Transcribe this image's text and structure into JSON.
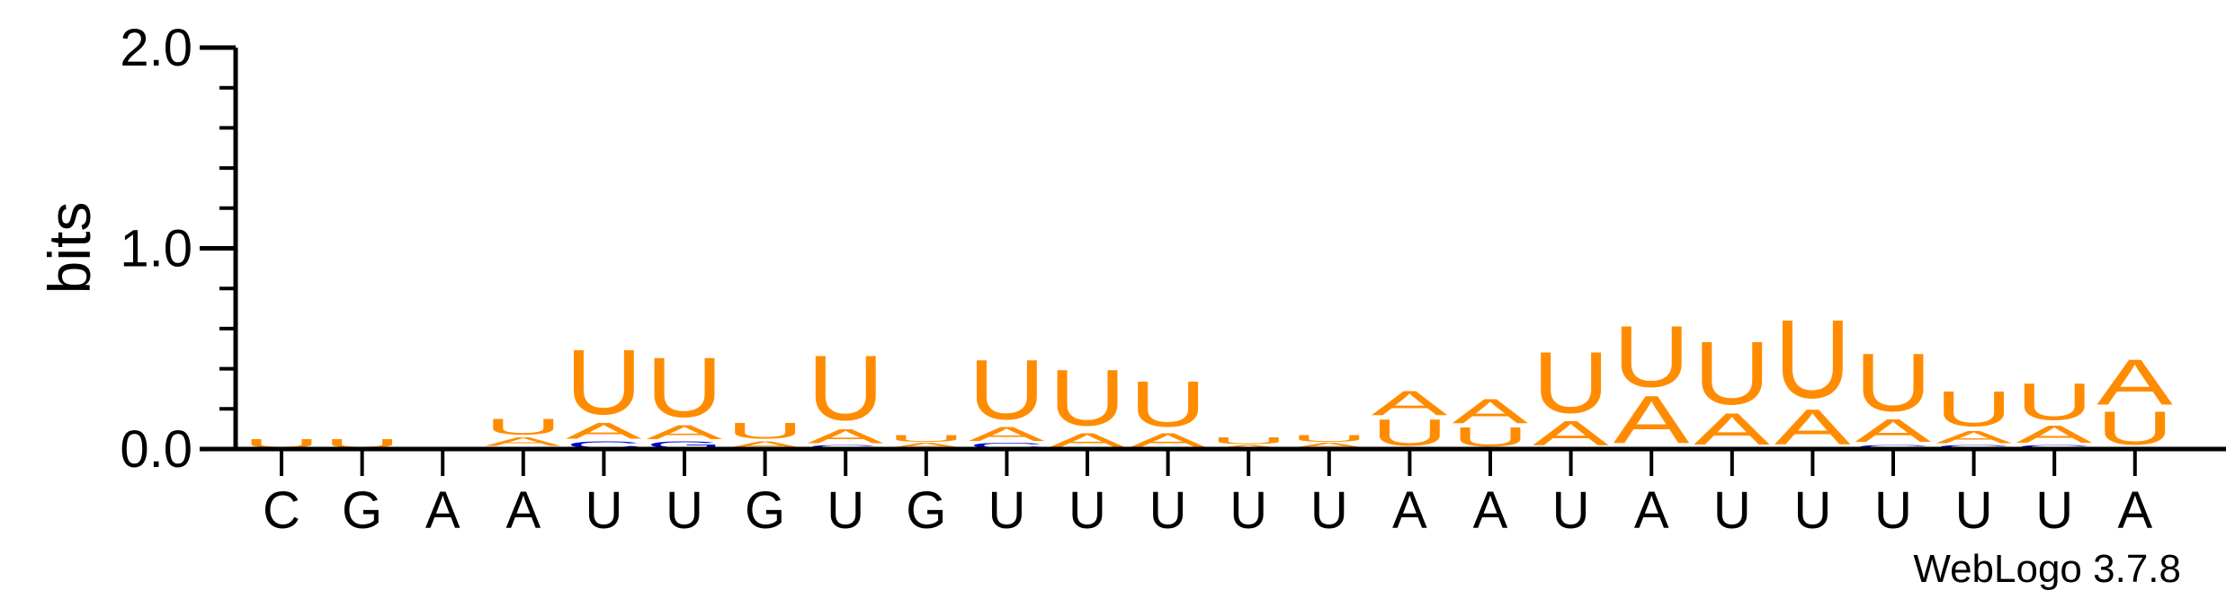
{
  "chart_data": {
    "type": "sequence-logo",
    "ylabel": "bits",
    "ylim": [
      0,
      2
    ],
    "yticks": [
      "0.0",
      "1.0",
      "2.0"
    ],
    "credit": "WebLogo 3.7.8",
    "positions": [
      {
        "label": "C",
        "stack": [
          {
            "letter": "U",
            "bits": 0.05
          }
        ]
      },
      {
        "label": "G",
        "stack": [
          {
            "letter": "U",
            "bits": 0.05
          }
        ]
      },
      {
        "label": "A",
        "stack": [
          {
            "letter": "C",
            "bits": 0.01
          }
        ]
      },
      {
        "label": "A",
        "stack": [
          {
            "letter": "G",
            "bits": 0.01
          },
          {
            "letter": "A",
            "bits": 0.05
          },
          {
            "letter": "U",
            "bits": 0.09
          }
        ]
      },
      {
        "label": "U",
        "stack": [
          {
            "letter": "C",
            "bits": 0.04
          },
          {
            "letter": "A",
            "bits": 0.09
          },
          {
            "letter": "U",
            "bits": 0.37
          }
        ]
      },
      {
        "label": "U",
        "stack": [
          {
            "letter": "G",
            "bits": 0.04
          },
          {
            "letter": "A",
            "bits": 0.08
          },
          {
            "letter": "U",
            "bits": 0.34
          }
        ]
      },
      {
        "label": "G",
        "stack": [
          {
            "letter": "A",
            "bits": 0.04
          },
          {
            "letter": "U",
            "bits": 0.09
          }
        ]
      },
      {
        "label": "U",
        "stack": [
          {
            "letter": "G",
            "bits": 0.02
          },
          {
            "letter": "A",
            "bits": 0.08
          },
          {
            "letter": "U",
            "bits": 0.37
          }
        ]
      },
      {
        "label": "G",
        "stack": [
          {
            "letter": "A",
            "bits": 0.03
          },
          {
            "letter": "U",
            "bits": 0.04
          }
        ]
      },
      {
        "label": "U",
        "stack": [
          {
            "letter": "C",
            "bits": 0.03
          },
          {
            "letter": "A",
            "bits": 0.08
          },
          {
            "letter": "U",
            "bits": 0.34
          }
        ]
      },
      {
        "label": "U",
        "stack": [
          {
            "letter": "A",
            "bits": 0.08
          },
          {
            "letter": "U",
            "bits": 0.32
          }
        ]
      },
      {
        "label": "U",
        "stack": [
          {
            "letter": "A",
            "bits": 0.08
          },
          {
            "letter": "U",
            "bits": 0.26
          }
        ]
      },
      {
        "label": "U",
        "stack": [
          {
            "letter": "A",
            "bits": 0.02
          },
          {
            "letter": "U",
            "bits": 0.04
          }
        ]
      },
      {
        "label": "U",
        "stack": [
          {
            "letter": "A",
            "bits": 0.03
          },
          {
            "letter": "U",
            "bits": 0.04
          }
        ]
      },
      {
        "label": "A",
        "stack": [
          {
            "letter": "U",
            "bits": 0.15
          },
          {
            "letter": "A",
            "bits": 0.14
          }
        ]
      },
      {
        "label": "A",
        "stack": [
          {
            "letter": "U",
            "bits": 0.11
          },
          {
            "letter": "A",
            "bits": 0.14
          }
        ]
      },
      {
        "label": "U",
        "stack": [
          {
            "letter": "A",
            "bits": 0.14
          },
          {
            "letter": "U",
            "bits": 0.35
          }
        ]
      },
      {
        "label": "A",
        "stack": [
          {
            "letter": "A",
            "bits": 0.27
          },
          {
            "letter": "U",
            "bits": 0.35
          }
        ]
      },
      {
        "label": "U",
        "stack": [
          {
            "letter": "A",
            "bits": 0.18
          },
          {
            "letter": "U",
            "bits": 0.36
          }
        ]
      },
      {
        "label": "U",
        "stack": [
          {
            "letter": "A",
            "bits": 0.2
          },
          {
            "letter": "U",
            "bits": 0.45
          }
        ]
      },
      {
        "label": "U",
        "stack": [
          {
            "letter": "C",
            "bits": 0.02
          },
          {
            "letter": "A",
            "bits": 0.13
          },
          {
            "letter": "U",
            "bits": 0.33
          }
        ]
      },
      {
        "label": "U",
        "stack": [
          {
            "letter": "C",
            "bits": 0.02
          },
          {
            "letter": "A",
            "bits": 0.07
          },
          {
            "letter": "U",
            "bits": 0.2
          }
        ]
      },
      {
        "label": "U",
        "stack": [
          {
            "letter": "C",
            "bits": 0.02
          },
          {
            "letter": "A",
            "bits": 0.1
          },
          {
            "letter": "U",
            "bits": 0.21
          }
        ]
      },
      {
        "label": "A",
        "stack": [
          {
            "letter": "U",
            "bits": 0.19
          },
          {
            "letter": "A",
            "bits": 0.26
          }
        ]
      }
    ],
    "colors": {
      "A": "#ff8c00",
      "U": "#ff8c00",
      "C": "#0000cc",
      "G": "#0000cc",
      "axis": "#000000"
    }
  }
}
